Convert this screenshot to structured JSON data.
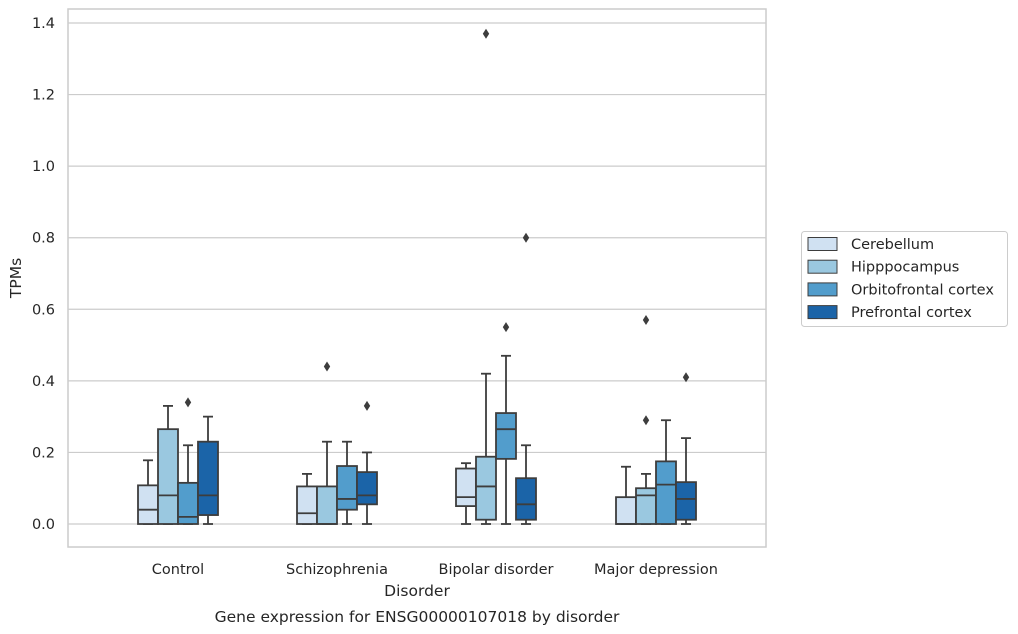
{
  "chart_data": {
    "type": "box",
    "title": "",
    "caption": "Gene expression for ENSG00000107018 by disorder",
    "xlabel": "Disorder",
    "ylabel": "TPMs",
    "ylim": [
      -0.065,
      1.44
    ],
    "yticks": [
      "0.0",
      "0.2",
      "0.4",
      "0.6",
      "0.8",
      "1.0",
      "1.2",
      "1.4"
    ],
    "ytick_values": [
      0.0,
      0.2,
      0.4,
      0.6,
      0.8,
      1.0,
      1.2,
      1.4
    ],
    "grid": true,
    "legend_position": "right",
    "categories": [
      "Control",
      "Schizophrenia",
      "Bipolar disorder",
      "Major depression"
    ],
    "series": [
      {
        "name": "Cerebellum",
        "color": "#d0e1f2",
        "boxes": [
          {
            "whislo": 0.0,
            "q1": 0.0,
            "med": 0.04,
            "q3": 0.108,
            "whishi": 0.178,
            "fliers": []
          },
          {
            "whislo": 0.0,
            "q1": 0.0,
            "med": 0.03,
            "q3": 0.105,
            "whishi": 0.14,
            "fliers": []
          },
          {
            "whislo": 0.0,
            "q1": 0.05,
            "med": 0.075,
            "q3": 0.155,
            "whishi": 0.17,
            "fliers": []
          },
          {
            "whislo": 0.0,
            "q1": 0.0,
            "med": 0.0,
            "q3": 0.075,
            "whishi": 0.16,
            "fliers": []
          }
        ]
      },
      {
        "name": "Hipppocampus",
        "color": "#9ac8e0",
        "boxes": [
          {
            "whislo": 0.0,
            "q1": 0.0,
            "med": 0.08,
            "q3": 0.265,
            "whishi": 0.33,
            "fliers": []
          },
          {
            "whislo": 0.0,
            "q1": 0.0,
            "med": 0.0,
            "q3": 0.105,
            "whishi": 0.23,
            "fliers": [
              0.44
            ]
          },
          {
            "whislo": 0.0,
            "q1": 0.012,
            "med": 0.105,
            "q3": 0.188,
            "whishi": 0.42,
            "fliers": [
              1.37
            ]
          },
          {
            "whislo": 0.0,
            "q1": 0.0,
            "med": 0.08,
            "q3": 0.1,
            "whishi": 0.14,
            "fliers": [
              0.57,
              0.29
            ]
          }
        ]
      },
      {
        "name": "Orbitofrontal cortex",
        "color": "#529dcc",
        "boxes": [
          {
            "whislo": 0.0,
            "q1": 0.0,
            "med": 0.02,
            "q3": 0.115,
            "whishi": 0.22,
            "fliers": [
              0.34
            ]
          },
          {
            "whislo": 0.0,
            "q1": 0.04,
            "med": 0.07,
            "q3": 0.162,
            "whishi": 0.23,
            "fliers": []
          },
          {
            "whislo": 0.0,
            "q1": 0.182,
            "med": 0.265,
            "q3": 0.31,
            "whishi": 0.47,
            "fliers": [
              0.55
            ]
          },
          {
            "whislo": 0.0,
            "q1": 0.0,
            "med": 0.11,
            "q3": 0.175,
            "whishi": 0.29,
            "fliers": []
          }
        ]
      },
      {
        "name": "Prefrontal cortex",
        "color": "#1b64a8",
        "boxes": [
          {
            "whislo": 0.0,
            "q1": 0.025,
            "med": 0.08,
            "q3": 0.23,
            "whishi": 0.3,
            "fliers": []
          },
          {
            "whislo": 0.0,
            "q1": 0.055,
            "med": 0.08,
            "q3": 0.145,
            "whishi": 0.2,
            "fliers": [
              0.33
            ]
          },
          {
            "whislo": 0.0,
            "q1": 0.012,
            "med": 0.055,
            "q3": 0.128,
            "whishi": 0.22,
            "fliers": [
              0.8
            ]
          },
          {
            "whislo": 0.0,
            "q1": 0.012,
            "med": 0.07,
            "q3": 0.117,
            "whishi": 0.24,
            "fliers": [
              0.41
            ]
          }
        ]
      }
    ]
  }
}
